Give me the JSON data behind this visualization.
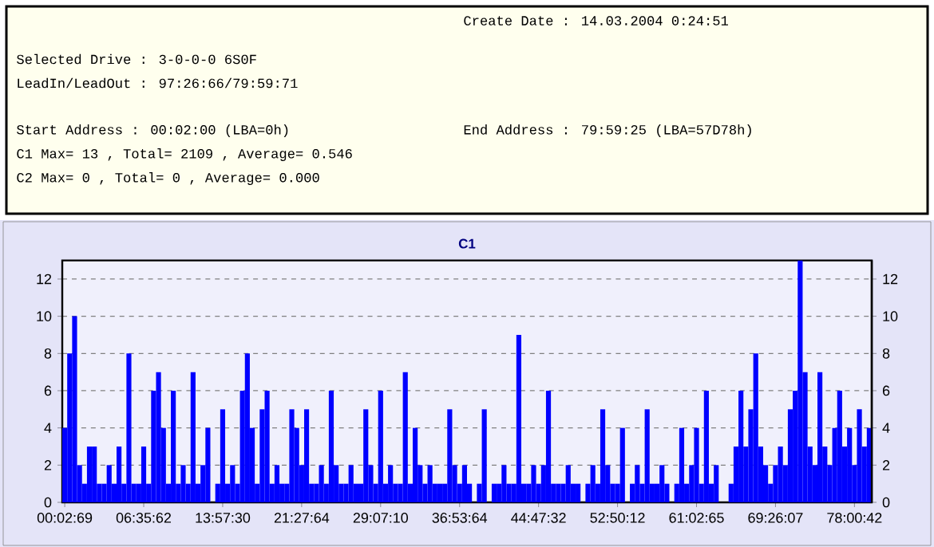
{
  "chart_data": [
    {
      "type": "other",
      "annotations": [
        "Create Date    : 14.03.2004 0:24:51",
        "Selected Drive : 3-0-0-0        6S0F",
        "LeadIn/LeadOut : 97:26:66/79:59:71",
        "Start Address  : 00:02:00 (LBA=0h)",
        "End Address    : 79:59:25 (LBA=57D78h)",
        "C1 Max= 13 , Total= 2109 , Average= 0.546",
        "C2 Max= 0 , Total= 0 , Average= 0.000"
      ]
    },
    {
      "type": "bar",
      "title": "C1",
      "color": "#0000ff",
      "grid": "y",
      "ylim": [
        0,
        13
      ],
      "y2lim": [
        0,
        13
      ],
      "yticks": [
        0,
        2,
        4,
        6,
        8,
        10,
        12
      ],
      "y2ticks": [
        0,
        2,
        4,
        6,
        8,
        10,
        12
      ],
      "categories": [
        "00:02:69",
        null,
        null,
        null,
        null,
        null,
        null,
        null,
        null,
        null,
        null,
        null,
        null,
        null,
        null,
        null,
        "06:35:62",
        null,
        null,
        null,
        null,
        null,
        null,
        null,
        null,
        null,
        null,
        null,
        null,
        null,
        null,
        null,
        "13:57:30",
        null,
        null,
        null,
        null,
        null,
        null,
        null,
        null,
        null,
        null,
        null,
        null,
        null,
        null,
        null,
        "21:27:64",
        null,
        null,
        null,
        null,
        null,
        null,
        null,
        null,
        null,
        null,
        null,
        null,
        null,
        null,
        null,
        "29:07:10",
        null,
        null,
        null,
        null,
        null,
        null,
        null,
        null,
        null,
        null,
        null,
        null,
        null,
        null,
        null,
        "36:53:64",
        null,
        null,
        null,
        null,
        null,
        null,
        null,
        null,
        null,
        null,
        null,
        null,
        null,
        null,
        null,
        "44:47:32",
        null,
        null,
        null,
        null,
        null,
        null,
        null,
        null,
        null,
        null,
        null,
        null,
        null,
        null,
        null,
        "52:50:12",
        null,
        null,
        null,
        null,
        null,
        null,
        null,
        null,
        null,
        null,
        null,
        null,
        null,
        null,
        null,
        "61:02:65",
        null,
        null,
        null,
        null,
        null,
        null,
        null,
        null,
        null,
        null,
        null,
        null,
        null,
        null,
        null,
        "69:26:07",
        null,
        null,
        null,
        null,
        null,
        null,
        null,
        null,
        null,
        null,
        null,
        null,
        null,
        null,
        null,
        "78:00:42",
        null,
        null,
        null
      ],
      "values": [
        4,
        8,
        10,
        2,
        1,
        3,
        3,
        1,
        1,
        2,
        1,
        3,
        1,
        8,
        1,
        1,
        3,
        1,
        6,
        7,
        4,
        1,
        6,
        1,
        2,
        1,
        7,
        1,
        2,
        4,
        0,
        1,
        5,
        1,
        2,
        1,
        6,
        8,
        4,
        1,
        5,
        6,
        1,
        2,
        1,
        1,
        5,
        4,
        2,
        5,
        1,
        1,
        2,
        1,
        6,
        2,
        1,
        1,
        2,
        1,
        1,
        5,
        2,
        1,
        6,
        1,
        2,
        1,
        1,
        7,
        1,
        4,
        2,
        1,
        2,
        1,
        1,
        1,
        5,
        2,
        1,
        2,
        1,
        0,
        1,
        5,
        0,
        1,
        1,
        2,
        1,
        1,
        9,
        1,
        1,
        2,
        1,
        2,
        6,
        1,
        1,
        1,
        2,
        1,
        1,
        0,
        1,
        2,
        1,
        5,
        2,
        1,
        1,
        4,
        0,
        1,
        2,
        1,
        5,
        1,
        1,
        2,
        1,
        0,
        1,
        4,
        1,
        2,
        4,
        1,
        6,
        1,
        2,
        0,
        0,
        1,
        3,
        6,
        3,
        5,
        8,
        3,
        2,
        1,
        2,
        3,
        2,
        5,
        6,
        13,
        7,
        3,
        2,
        7,
        3,
        2,
        4,
        6,
        3,
        4,
        2,
        5,
        3,
        4
      ]
    }
  ]
}
